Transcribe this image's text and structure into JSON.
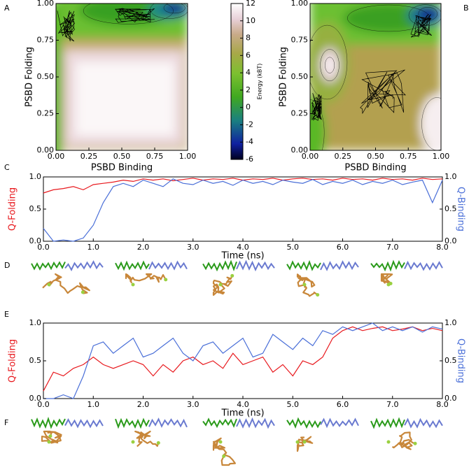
{
  "chart_data": [
    {
      "type": "contour",
      "panel": "A",
      "xlabel": "PSBD Binding",
      "ylabel": "PSBD Folding",
      "xlim": [
        0,
        1
      ],
      "ylim": [
        0,
        1
      ],
      "xticks": [
        {
          "value": 0,
          "label": "0.00"
        },
        0.25,
        {
          "value": 0.5,
          "label": "0.50"
        },
        0.75,
        {
          "value": 1,
          "label": "1.00"
        }
      ],
      "yticks": [
        {
          "value": 0,
          "label": "0.00"
        },
        0.25,
        {
          "value": 0.5,
          "label": "0.50"
        },
        0.75,
        {
          "value": 1,
          "label": "1.00"
        }
      ]
    },
    {
      "type": "colorbar",
      "label": "Energy (kBT)",
      "ylim": [
        -6,
        12
      ],
      "yticks": [
        -6,
        -4,
        -2,
        0,
        2,
        4,
        6,
        8,
        10,
        12
      ]
    },
    {
      "type": "contour",
      "panel": "B",
      "xlabel": "PSBD Binding",
      "ylabel": "PSBD Folding",
      "xlim": [
        0,
        1
      ],
      "ylim": [
        0,
        1
      ],
      "xticks": [
        {
          "value": 0,
          "label": "0.00"
        },
        0.25,
        {
          "value": 0.5,
          "label": "0.50"
        },
        0.75,
        {
          "value": 1,
          "label": "1.00"
        }
      ],
      "yticks": [
        {
          "value": 0,
          "label": "0.00"
        },
        0.25,
        {
          "value": 0.5,
          "label": "0.50"
        },
        0.75,
        {
          "value": 1,
          "label": "1.00"
        }
      ]
    },
    {
      "type": "line",
      "panel": "C",
      "xlabel": "Time (ns)",
      "xlim": [
        0,
        8
      ],
      "ylim": [
        0,
        1
      ],
      "y2lim": [
        0,
        1
      ],
      "xticks": [
        {
          "value": 0,
          "label": "0.0"
        },
        {
          "value": 1,
          "label": "1.0"
        },
        {
          "value": 2,
          "label": "2.0"
        },
        {
          "value": 3,
          "label": "3.0"
        },
        {
          "value": 4,
          "label": "4.0"
        },
        {
          "value": 5,
          "label": "5.0"
        },
        {
          "value": 6,
          "label": "6.0"
        },
        {
          "value": 7,
          "label": "7.0"
        },
        {
          "value": 8,
          "label": "8.0"
        }
      ],
      "yticks": [
        {
          "value": 0,
          "label": "0.0"
        },
        0.5,
        {
          "value": 1,
          "label": "1.0"
        }
      ],
      "y2ticks": [
        {
          "value": 0,
          "label": "0.0"
        },
        0.5,
        {
          "value": 1,
          "label": "1.0"
        }
      ],
      "x": [
        0,
        0.2,
        0.4,
        0.6,
        0.8,
        1,
        1.2,
        1.4,
        1.6,
        1.8,
        2,
        2.2,
        2.4,
        2.6,
        2.8,
        3,
        3.2,
        3.4,
        3.6,
        3.8,
        4,
        4.2,
        4.4,
        4.6,
        4.8,
        5,
        5.2,
        5.4,
        5.6,
        5.8,
        6,
        6.2,
        6.4,
        6.6,
        6.8,
        7,
        7.2,
        7.4,
        7.6,
        7.8,
        8
      ],
      "series": [
        {
          "name": "Q-Folding",
          "color": "#e8191e",
          "values": [
            0.75,
            0.8,
            0.82,
            0.85,
            0.8,
            0.88,
            0.9,
            0.92,
            0.95,
            0.93,
            0.97,
            0.95,
            0.97,
            0.94,
            0.96,
            0.98,
            0.95,
            0.97,
            0.96,
            0.98,
            0.95,
            0.97,
            0.96,
            0.98,
            0.95,
            0.97,
            0.98,
            0.96,
            0.97,
            0.95,
            0.98,
            0.96,
            0.97,
            0.95,
            0.98,
            0.96,
            0.97,
            0.95,
            0.98,
            0.96,
            0.97
          ]
        },
        {
          "name": "Q-Binding",
          "color": "#4a6fd8",
          "axis": "y2",
          "values": [
            0.2,
            0.0,
            0.02,
            0.0,
            0.05,
            0.25,
            0.6,
            0.85,
            0.9,
            0.85,
            0.95,
            0.9,
            0.85,
            0.97,
            0.9,
            0.88,
            0.95,
            0.9,
            0.93,
            0.87,
            0.95,
            0.9,
            0.93,
            0.88,
            0.95,
            0.92,
            0.9,
            0.96,
            0.88,
            0.93,
            0.9,
            0.95,
            0.88,
            0.93,
            0.9,
            0.95,
            0.88,
            0.92,
            0.95,
            0.6,
            0.95
          ]
        }
      ]
    },
    {
      "type": "line",
      "panel": "E",
      "xlabel": "Time (ns)",
      "xlim": [
        0,
        8
      ],
      "ylim": [
        0,
        1
      ],
      "y2lim": [
        0,
        1
      ],
      "xticks": [
        {
          "value": 0,
          "label": "0.0"
        },
        {
          "value": 1,
          "label": "1.0"
        },
        {
          "value": 2,
          "label": "2.0"
        },
        {
          "value": 3,
          "label": "3.0"
        },
        {
          "value": 4,
          "label": "4.0"
        },
        {
          "value": 5,
          "label": "5.0"
        },
        {
          "value": 6,
          "label": "6.0"
        },
        {
          "value": 7,
          "label": "7.0"
        },
        {
          "value": 8,
          "label": "8.0"
        }
      ],
      "yticks": [
        {
          "value": 0,
          "label": "0.0"
        },
        0.5,
        {
          "value": 1,
          "label": "1.0"
        }
      ],
      "y2ticks": [
        {
          "value": 0,
          "label": "0.0"
        },
        0.5,
        {
          "value": 1,
          "label": "1.0"
        }
      ],
      "x": [
        0,
        0.2,
        0.4,
        0.6,
        0.8,
        1,
        1.2,
        1.4,
        1.6,
        1.8,
        2,
        2.2,
        2.4,
        2.6,
        2.8,
        3,
        3.2,
        3.4,
        3.6,
        3.8,
        4,
        4.2,
        4.4,
        4.6,
        4.8,
        5,
        5.2,
        5.4,
        5.6,
        5.8,
        6,
        6.2,
        6.4,
        6.6,
        6.8,
        7,
        7.2,
        7.4,
        7.6,
        7.8,
        8
      ],
      "series": [
        {
          "name": "Q-Folding",
          "color": "#e8191e",
          "values": [
            0.1,
            0.35,
            0.3,
            0.4,
            0.45,
            0.55,
            0.45,
            0.4,
            0.45,
            0.5,
            0.45,
            0.3,
            0.45,
            0.35,
            0.5,
            0.55,
            0.45,
            0.5,
            0.4,
            0.6,
            0.45,
            0.5,
            0.55,
            0.35,
            0.45,
            0.3,
            0.5,
            0.45,
            0.55,
            0.8,
            0.9,
            0.95,
            0.9,
            0.93,
            0.95,
            0.9,
            0.92,
            0.95,
            0.9,
            0.93,
            0.9
          ]
        },
        {
          "name": "Q-Binding",
          "color": "#4a6fd8",
          "axis": "y2",
          "values": [
            0.0,
            0.0,
            0.05,
            0.0,
            0.3,
            0.7,
            0.75,
            0.6,
            0.7,
            0.8,
            0.55,
            0.6,
            0.7,
            0.8,
            0.6,
            0.5,
            0.7,
            0.75,
            0.6,
            0.7,
            0.8,
            0.55,
            0.6,
            0.85,
            0.75,
            0.65,
            0.8,
            0.7,
            0.9,
            0.85,
            0.95,
            0.9,
            0.95,
            1.0,
            0.9,
            0.95,
            0.9,
            0.95,
            0.88,
            0.95,
            0.92
          ]
        }
      ]
    }
  ],
  "structure_panels": [
    "D",
    "F"
  ]
}
